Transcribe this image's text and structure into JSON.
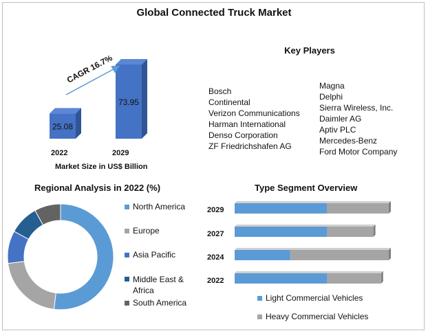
{
  "title": "Global Connected Truck Market",
  "market": {
    "xlabel": "Market Size in US$ Billion",
    "cagr_label": "CAGR 16.7%"
  },
  "key_players": {
    "title": "Key Players",
    "col1": [
      "Bosch",
      "Continental",
      "Verizon Communications",
      "Harman International",
      "Denso Corporation",
      "ZF Friedrichshafen AG"
    ],
    "col2": [
      "Magna",
      "Delphi",
      "Sierra Wireless, Inc.",
      "Daimler AG",
      "Aptiv PLC",
      "Mercedes-Benz",
      "Ford Motor Company"
    ]
  },
  "regional": {
    "title": "Regional Analysis in 2022 (%)",
    "legend": [
      "North America",
      "Europe",
      "Asia Pacific",
      "Middle East & Africa",
      "South America"
    ]
  },
  "type_segment": {
    "title": "Type Segment Overview",
    "legend": [
      "Light Commercial Vehicles",
      "Heavy Commercial Vehicles"
    ]
  },
  "colors": {
    "bar_blue": "#4472c4",
    "bar_dark": "#2f5597",
    "na": "#5b9bd5",
    "eu": "#a5a5a5",
    "ap": "#4472c4",
    "mea": "#255e91",
    "sa": "#636363",
    "light": "#5b9bd5",
    "heavy": "#a5a5a5"
  },
  "chart_data": [
    {
      "type": "bar",
      "categories": [
        "2022",
        "2029"
      ],
      "values": [
        25.08,
        73.95
      ],
      "xlabel": "Market Size in US$ Billion",
      "annotations": [
        "CAGR 16.7%"
      ]
    },
    {
      "type": "pie",
      "title": "Regional Analysis in 2022 (%)",
      "labels": [
        "North America",
        "Europe",
        "Asia Pacific",
        "Middle East & Africa",
        "South America"
      ],
      "values": [
        52,
        21,
        10,
        9,
        8
      ]
    },
    {
      "type": "bar",
      "orientation": "horizontal",
      "stacked": true,
      "title": "Type Segment Overview",
      "categories": [
        "2029",
        "2027",
        "2024",
        "2022"
      ],
      "series": [
        {
          "name": "Light Commercial Vehicles",
          "values": [
            60,
            60,
            36,
            60
          ]
        },
        {
          "name": "Heavy Commercial Vehicles",
          "values": [
            40,
            30,
            64,
            35
          ]
        }
      ]
    }
  ]
}
